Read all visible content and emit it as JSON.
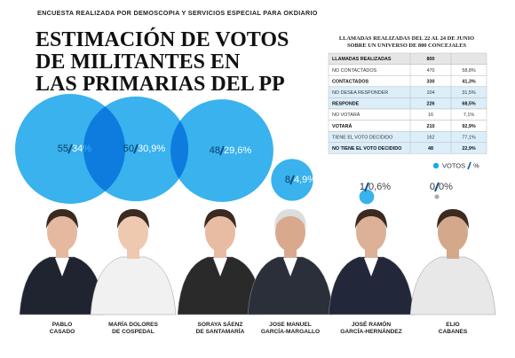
{
  "header": {
    "kicker": "ENCUESTA REALIZADA POR DEMOSCOPIA Y SERVICIOS ESPECIAL PARA OKDIARIO",
    "title": [
      "ESTIMACIÓN DE VOTOS",
      "DE MILITANTES EN",
      "LAS PRIMARIAS DEL PP"
    ]
  },
  "table": {
    "caption": [
      "LLAMADAS REALIZADAS DEL 22 AL 24 DE JUNIO",
      "SOBRE UN UNIVERSO DE 800 CONCEJALES"
    ],
    "rows": [
      [
        "LLAMADAS REALIZADAS",
        "800"
      ],
      [
        "NO CONTACTADOS",
        "470",
        "58,8%"
      ],
      [
        "CONTACTADOS",
        "330",
        "41,3%"
      ],
      [
        "NO DESEA RESPONDER",
        "104",
        "31,5%"
      ],
      [
        "RESPONDE",
        "226",
        "68,5%"
      ],
      [
        "NO VOTARÁ",
        "16",
        "7,1%"
      ],
      [
        "VOTARÁ",
        "210",
        "92,9%"
      ],
      [
        "TIENE EL VOTO DECIDIDO",
        "162",
        "77,1%"
      ],
      [
        "NO TIENE EL VOTO DECIDIDO",
        "48",
        "22,9%"
      ]
    ]
  },
  "chart_data": {
    "type": "bubble",
    "categories": [
      [
        "PABLO",
        "CASADO"
      ],
      [
        "MARÍA DOLORES",
        "DE COSPEDAL"
      ],
      [
        "SORAYA SÁENZ",
        "DE SANTAMARÍA"
      ],
      [
        "JOSE MANUEL",
        "GARCÍA-MARGALLO"
      ],
      [
        "JOSÉ RAMÓN",
        "GARCÍA-HERNÁNDEZ"
      ],
      [
        "ELIO",
        "CABANES"
      ]
    ],
    "series": [
      {
        "name": "VOTOS",
        "color": "#1ea7ec",
        "values": [
          55,
          50,
          48,
          8,
          1,
          0
        ]
      },
      {
        "name": "%",
        "values": [
          34,
          30.9,
          29.6,
          4.9,
          0.6,
          0
        ],
        "value_labels": [
          "34%",
          "30,9%",
          "29,6%",
          "4,9%",
          "0,6%",
          "0%"
        ]
      }
    ]
  }
}
